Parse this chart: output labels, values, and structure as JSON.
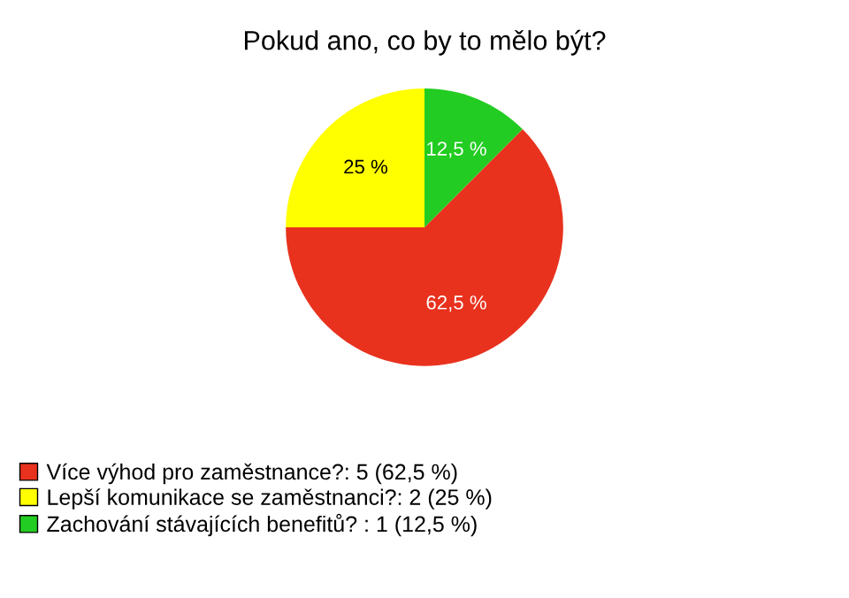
{
  "chart_data": {
    "type": "pie",
    "title": "Pokud ano, co by to mělo být?",
    "categories": [
      "Více výhod pro zaměstnance?: 5 (62,5 %)",
      "Lepší komunikace se zaměstnanci?: 2 (25 %)",
      "Zachování stávajících benefitů? : 1 (12,5 %)"
    ],
    "values": [
      62.5,
      25,
      12.5
    ],
    "value_labels": [
      "62,5 %",
      "25 %",
      "12,5 %"
    ],
    "colors": [
      "#e8321e",
      "#ffff00",
      "#22cc22"
    ],
    "legend": "bottom left"
  }
}
